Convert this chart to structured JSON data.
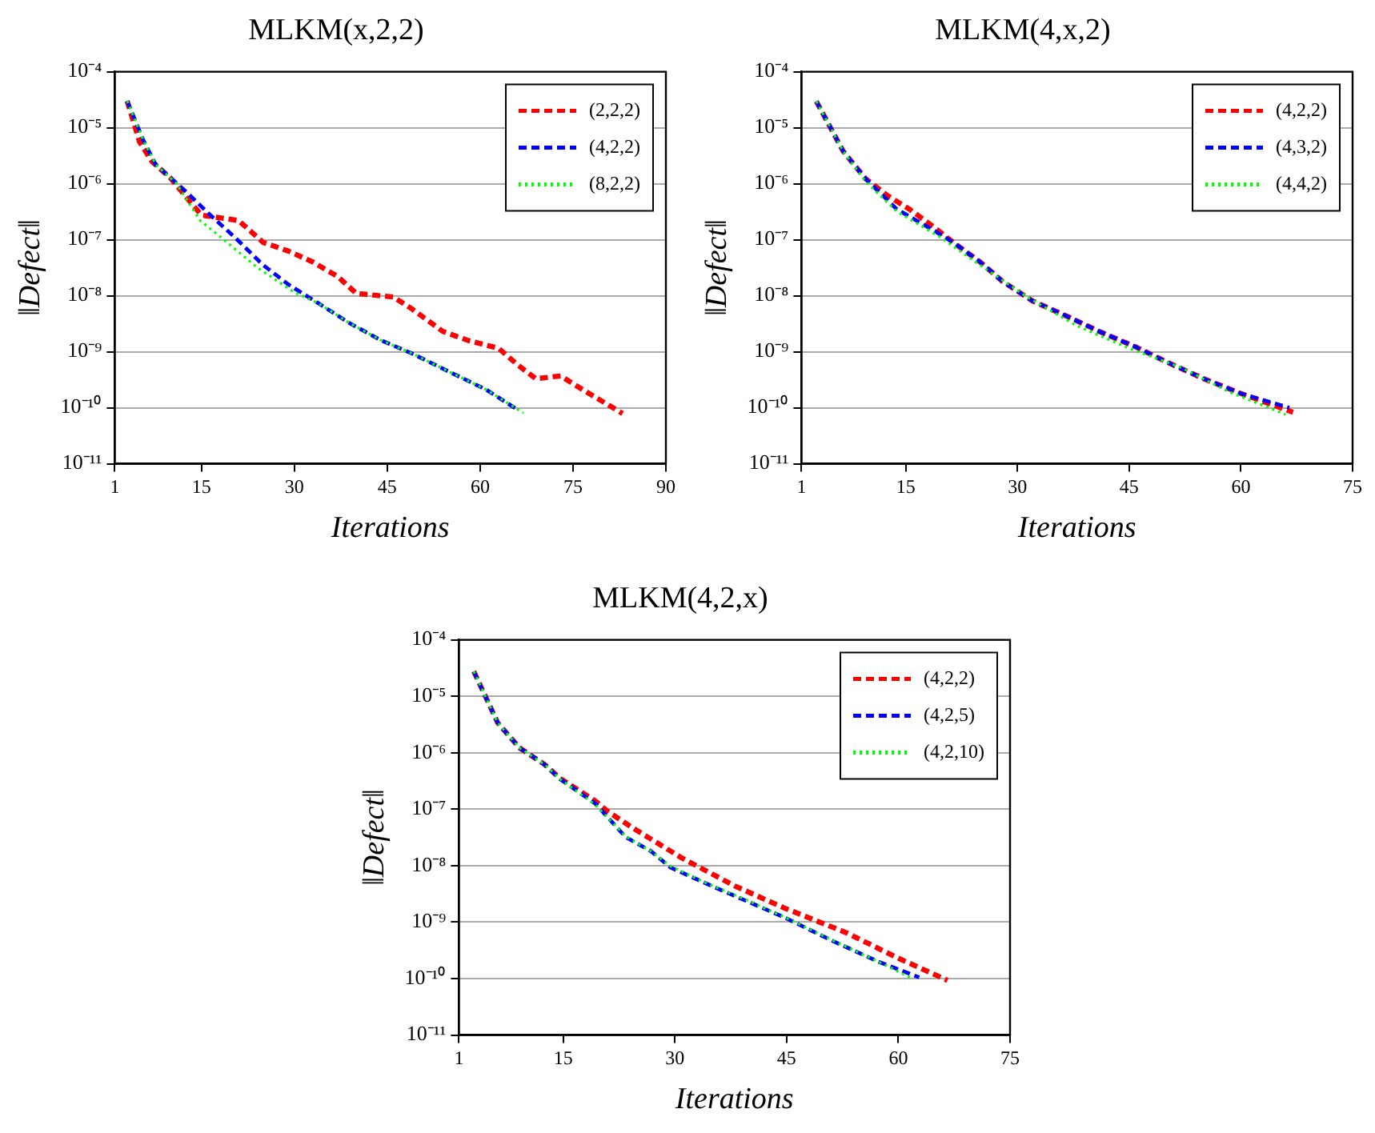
{
  "chart_data": [
    {
      "type": "line",
      "title": "MLKM(x,2,2)",
      "xlabel": "Iterations",
      "ylabel": "‖Defect‖",
      "log": "y",
      "grid": "y",
      "legend": "top right",
      "marker": "none",
      "xlim": [
        1,
        90
      ],
      "xticks": [
        1,
        15,
        30,
        45,
        60,
        75,
        90
      ],
      "ylim": [
        1e-11,
        0.0001
      ],
      "yticks": [
        {
          "value": 1e-11,
          "label": "10⁻¹¹"
        },
        {
          "value": 1e-10,
          "label": "10⁻¹⁰"
        },
        {
          "value": 1e-09,
          "label": "10⁻⁹"
        },
        {
          "value": 1e-08,
          "label": "10⁻⁸"
        },
        {
          "value": 1e-07,
          "label": "10⁻⁷"
        },
        {
          "value": 1e-06,
          "label": "10⁻⁶"
        },
        {
          "value": 1e-05,
          "label": "10⁻⁵"
        },
        {
          "value": 0.0001,
          "label": "10⁻⁴"
        }
      ],
      "series": [
        {
          "name": "(2,2,2)",
          "color": "#ff0000",
          "line_style": "dashed",
          "x": [
            3,
            5,
            7,
            10,
            13,
            15,
            21,
            25,
            29,
            33,
            37,
            40,
            46,
            49,
            54,
            58,
            63,
            66,
            69,
            73,
            76,
            83
          ],
          "values": [
            3e-05,
            5.6e-06,
            2.5e-06,
            1.26e-06,
            5e-07,
            2.75e-07,
            2.2e-07,
            8.9e-08,
            6.3e-08,
            4e-08,
            2.2e-08,
            1.1e-08,
            9.5e-09,
            5.8e-09,
            2.3e-09,
            1.6e-09,
            1.15e-09,
            5.9e-10,
            3.3e-10,
            3.7e-10,
            2.3e-10,
            7.9e-11
          ]
        },
        {
          "name": "(4,2,2)",
          "color": "#0000ff",
          "line_style": "dashed",
          "x": [
            3,
            5.6,
            7.6,
            12.7,
            15.8,
            20.4,
            25,
            29,
            34,
            39,
            44,
            49,
            55,
            61,
            66
          ],
          "values": [
            3e-05,
            6e-06,
            2.2e-06,
            6.9e-07,
            3.2e-07,
            1.1e-07,
            3.5e-08,
            1.6e-08,
            7.2e-09,
            3.2e-09,
            1.6e-09,
            9.3e-10,
            4.4e-10,
            2.1e-10,
            9.3e-11
          ]
        },
        {
          "name": "(8,2,2)",
          "color": "#00ff00",
          "line_style": "dotted",
          "x": [
            3,
            5.6,
            7.6,
            11,
            14.8,
            18.3,
            24,
            30,
            34,
            39,
            44,
            49,
            55,
            61,
            67
          ],
          "values": [
            3e-05,
            6e-06,
            2.2e-06,
            1e-06,
            2.2e-07,
            1.07e-07,
            3.2e-08,
            1.15e-08,
            7.2e-09,
            3.2e-09,
            1.6e-09,
            9.3e-10,
            4.4e-10,
            2.1e-10,
            8.1e-11
          ]
        }
      ]
    },
    {
      "type": "line",
      "title": "MLKM(4,x,2)",
      "xlabel": "Iterations",
      "ylabel": "‖Defect‖",
      "log": "y",
      "grid": "y",
      "legend": "top right",
      "marker": "none",
      "xlim": [
        1,
        75
      ],
      "xticks": [
        1,
        15,
        30,
        45,
        60,
        75
      ],
      "ylim": [
        1e-11,
        0.0001
      ],
      "yticks": [
        {
          "value": 1e-11,
          "label": "10⁻¹¹"
        },
        {
          "value": 1e-10,
          "label": "10⁻¹⁰"
        },
        {
          "value": 1e-09,
          "label": "10⁻⁹"
        },
        {
          "value": 1e-08,
          "label": "10⁻⁸"
        },
        {
          "value": 1e-07,
          "label": "10⁻⁷"
        },
        {
          "value": 1e-06,
          "label": "10⁻⁶"
        },
        {
          "value": 1e-05,
          "label": "10⁻⁵"
        },
        {
          "value": 0.0001,
          "label": "10⁻⁴"
        }
      ],
      "series": [
        {
          "name": "(4,2,2)",
          "color": "#ff0000",
          "line_style": "dashed",
          "x": [
            3,
            6.6,
            9.6,
            12.5,
            15.5,
            19,
            21.4,
            25,
            28,
            32,
            37,
            41,
            46,
            50,
            55,
            60,
            67
          ],
          "values": [
            2.95e-05,
            3.8e-06,
            1.23e-06,
            6.2e-07,
            3.5e-07,
            1.6e-07,
            8.9e-08,
            4e-08,
            1.8e-08,
            8.1e-09,
            4.1e-09,
            2.3e-09,
            1.2e-09,
            6.6e-10,
            3.3e-10,
            1.8e-10,
            8.3e-11
          ]
        },
        {
          "name": "(4,3,2)",
          "color": "#0000ff",
          "line_style": "dashed",
          "x": [
            3,
            6.6,
            9.6,
            13.8,
            19,
            21.4,
            25,
            28,
            32,
            37,
            41,
            46,
            50,
            55,
            60,
            66.5
          ],
          "values": [
            2.95e-05,
            3.8e-06,
            1.23e-06,
            3.5e-07,
            1.4e-07,
            8.9e-08,
            4e-08,
            1.8e-08,
            8.1e-09,
            4.1e-09,
            2.3e-09,
            1.2e-09,
            6.6e-10,
            3.3e-10,
            1.8e-10,
            1e-10
          ]
        },
        {
          "name": "(4,4,2)",
          "color": "#00ff00",
          "line_style": "dotted",
          "x": [
            3,
            6.6,
            9.6,
            13.8,
            19.7,
            25,
            31.5,
            38,
            45,
            52,
            58.5,
            66
          ],
          "values": [
            2.95e-05,
            3.8e-06,
            1.1e-06,
            3.2e-07,
            1.1e-07,
            3.5e-08,
            9.1e-09,
            2.9e-09,
            1.15e-09,
            5.2e-10,
            1.9e-10,
            7.6e-11
          ]
        }
      ]
    },
    {
      "type": "line",
      "title": "MLKM(4,2,x)",
      "xlabel": "Iterations",
      "ylabel": "‖Defect‖",
      "log": "y",
      "grid": "y",
      "legend": "top right",
      "marker": "none",
      "xlim": [
        1,
        75
      ],
      "xticks": [
        1,
        15,
        30,
        45,
        60,
        75
      ],
      "ylim": [
        1e-11,
        0.0001
      ],
      "yticks": [
        {
          "value": 1e-11,
          "label": "10⁻¹¹"
        },
        {
          "value": 1e-10,
          "label": "10⁻¹⁰"
        },
        {
          "value": 1e-09,
          "label": "10⁻⁹"
        },
        {
          "value": 1e-08,
          "label": "10⁻⁸"
        },
        {
          "value": 1e-07,
          "label": "10⁻⁷"
        },
        {
          "value": 1e-06,
          "label": "10⁻⁶"
        },
        {
          "value": 1e-05,
          "label": "10⁻⁵"
        },
        {
          "value": 0.0001,
          "label": "10⁻⁴"
        }
      ],
      "series": [
        {
          "name": "(4,2,2)",
          "color": "#ff0000",
          "line_style": "dashed",
          "x": [
            3,
            6.2,
            9.1,
            12.5,
            14.6,
            19.3,
            21,
            24.3,
            31,
            38,
            44.6,
            53,
            60,
            66.6
          ],
          "values": [
            2.75e-05,
            3.4e-06,
            1.23e-06,
            6.2e-07,
            3.5e-07,
            1.4e-07,
            9.1e-08,
            4.7e-08,
            1.35e-08,
            4.4e-09,
            1.8e-09,
            6.5e-10,
            2.3e-10,
            9.3e-11
          ]
        },
        {
          "name": "(4,2,5)",
          "color": "#0000ff",
          "line_style": "dashed",
          "x": [
            3,
            6.2,
            9.1,
            12.5,
            14.6,
            19.3,
            23.4,
            26.8,
            29.4,
            34.4,
            39.5,
            44.6,
            51.4,
            57.3,
            62.8
          ],
          "values": [
            2.75e-05,
            3.4e-06,
            1.23e-06,
            6.2e-07,
            3.4e-07,
            1.26e-07,
            3.2e-08,
            1.8e-08,
            9.3e-09,
            4.7e-09,
            2.4e-09,
            1.23e-09,
            4.5e-10,
            2e-10,
            1.05e-10
          ]
        },
        {
          "name": "(4,2,10)",
          "color": "#00ff00",
          "line_style": "dotted",
          "x": [
            3,
            6.2,
            9.1,
            12.5,
            14.6,
            19.3,
            23.4,
            26.8,
            29.4,
            34.4,
            39.5,
            44.6,
            51.4,
            57.3,
            62
          ],
          "values": [
            2.75e-05,
            3.4e-06,
            1.23e-06,
            6.2e-07,
            3.4e-07,
            1.2e-07,
            3.3e-08,
            1.8e-08,
            9.8e-09,
            4.8e-09,
            2.5e-09,
            1.25e-09,
            4.6e-10,
            2e-10,
            9.8e-11
          ]
        }
      ]
    }
  ]
}
